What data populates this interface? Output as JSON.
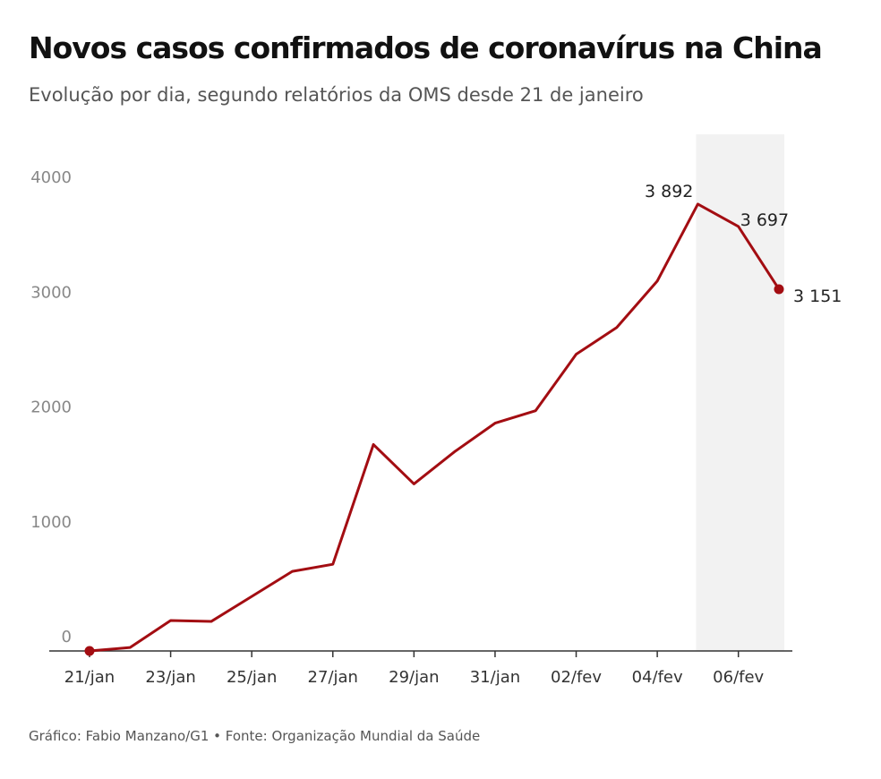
{
  "chart_data": {
    "type": "line",
    "title": "Novos casos confirmados de coronavírus na China",
    "subtitle": "Evolução por dia, segundo relatórios da OMS desde 21 de janeiro",
    "source": "Gráfico: Fabio Manzano/G1 • Fonte: Organização Mundial da Saúde",
    "categories": [
      "21/jan",
      null,
      "23/jan",
      null,
      "25/jan",
      null,
      "27/jan",
      null,
      "29/jan",
      null,
      "31/jan",
      null,
      "02/fev",
      null,
      "04/fev",
      null,
      "06/fev",
      null
    ],
    "series": [
      {
        "name": null,
        "color": "#a30d12",
        "values": [
          0,
          30,
          265,
          257,
          475,
          693,
          755,
          1798,
          1455,
          1735,
          1984,
          2093,
          2584,
          2817,
          3222,
          3892,
          3697,
          3151
        ],
        "value_labels": [
          null,
          null,
          null,
          null,
          null,
          null,
          null,
          null,
          null,
          null,
          null,
          null,
          null,
          null,
          null,
          "3 892",
          "3 697",
          "3 151"
        ]
      }
    ],
    "ylim": [
      0,
      4500
    ],
    "yticks": [
      0,
      1000,
      2000,
      3000,
      4000
    ],
    "grid": false
  }
}
